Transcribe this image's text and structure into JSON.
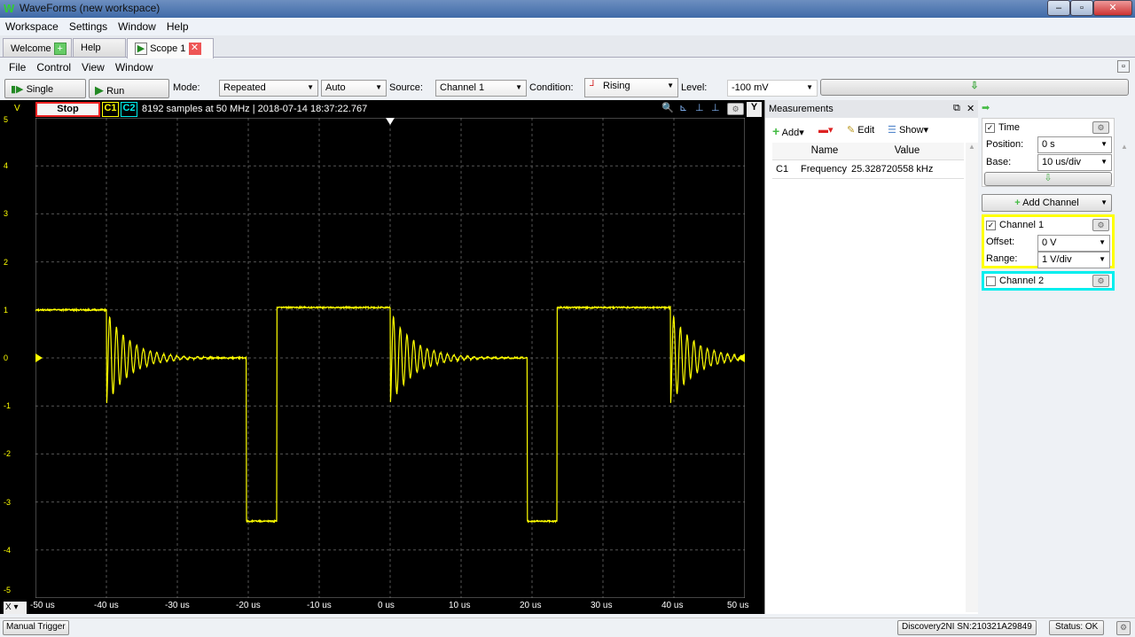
{
  "window": {
    "title": "WaveForms  (new workspace)",
    "minimize": "–",
    "maximize": "▫",
    "close": "✕"
  },
  "menu": [
    "Workspace",
    "Settings",
    "Window",
    "Help"
  ],
  "tabs": [
    {
      "label": "Welcome"
    },
    {
      "label": "Help"
    },
    {
      "label": "Scope 1"
    }
  ],
  "submenu": [
    "File",
    "Control",
    "View",
    "Window"
  ],
  "toolbar": {
    "single": "Single",
    "run": "Run",
    "mode_label": "Mode:",
    "mode": "Repeated",
    "auto": "Auto",
    "source_label": "Source:",
    "source": "Channel 1",
    "condition_label": "Condition:",
    "condition": "Rising",
    "level_label": "Level:",
    "level": "-100 mV"
  },
  "scope": {
    "y_unit": "V",
    "stop": "Stop",
    "c1": "C1",
    "c2": "C2",
    "info": "8192 samples at 50 MHz | 2018-07-14 18:37:22.767",
    "y_button": "Y",
    "x_button": "X"
  },
  "chart_data": {
    "type": "line",
    "xlabel": "",
    "ylabel": "V",
    "xlim": [
      -50,
      50
    ],
    "ylim": [
      -5,
      5
    ],
    "x_unit": "us",
    "x_ticks": [
      "-50 us",
      "-40 us",
      "-30 us",
      "-20 us",
      "-10 us",
      "0 us",
      "10 us",
      "20 us",
      "30 us",
      "40 us",
      "50 us"
    ],
    "y_ticks": [
      "5",
      "4",
      "3",
      "2",
      "1",
      "0",
      "-1",
      "-2",
      "-3",
      "-4",
      "-5"
    ],
    "grid": true,
    "series": [
      {
        "channel": "C1",
        "color": "#ffff00",
        "levels": [
          {
            "t": -50,
            "v": 1.0
          },
          {
            "t": -40,
            "v": 0.0,
            "ringing": true
          },
          {
            "t": -20.3,
            "v": -3.4
          },
          {
            "t": -16,
            "v": 1.05
          },
          {
            "t": 0,
            "v": 0.0,
            "ringing": true
          },
          {
            "t": 19.3,
            "v": -3.4
          },
          {
            "t": 23.5,
            "v": 1.05
          },
          {
            "t": 39.5,
            "v": 0.0,
            "ringing": true
          }
        ]
      }
    ],
    "trigger": {
      "time": 0,
      "level": -0.1
    }
  },
  "measurements": {
    "title": "Measurements",
    "add": "Add",
    "edit": "Edit",
    "show": "Show",
    "columns": [
      "Name",
      "Value"
    ],
    "rows": [
      {
        "ch": "C1",
        "name": "Frequency",
        "value": "25.328720558 kHz"
      }
    ]
  },
  "time": {
    "label": "Time",
    "checked": true,
    "position_label": "Position:",
    "position": "0 s",
    "base_label": "Base:",
    "base": "10 us/div"
  },
  "add_channel": "Add Channel",
  "channel1": {
    "label": "Channel 1",
    "checked": true,
    "color": "#ffff00",
    "offset_label": "Offset:",
    "offset": "0 V",
    "range_label": "Range:",
    "range": "1 V/div"
  },
  "channel2": {
    "label": "Channel 2",
    "checked": false,
    "color": "#00e5ff"
  },
  "status": {
    "manual_trigger": "Manual Trigger",
    "device": "Discovery2NI SN:210321A29849",
    "status": "Status: OK"
  }
}
